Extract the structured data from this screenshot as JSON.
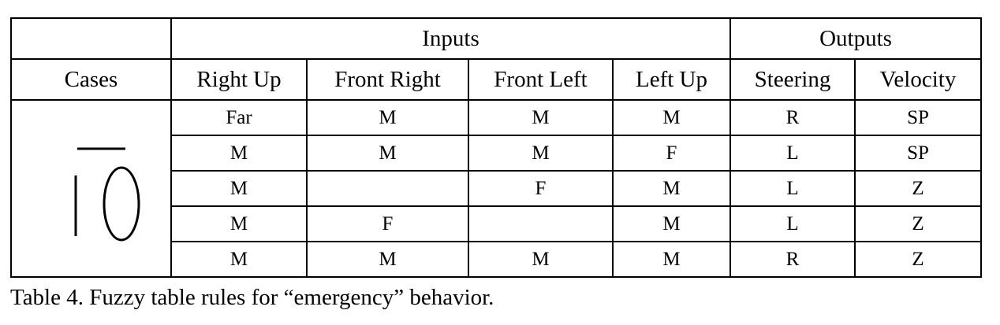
{
  "table": {
    "group_headers": {
      "inputs": "Inputs",
      "outputs": "Outputs"
    },
    "columns": {
      "cases": "Cases",
      "right_up": "Right Up",
      "front_right": "Front Right",
      "front_left": "Front Left",
      "left_up": "Left Up",
      "steering": "Steering",
      "velocity": "Velocity"
    },
    "case_icon": "robot-between-walls-icon",
    "rows": [
      {
        "right_up": "Far",
        "front_right": "M",
        "front_left": "M",
        "left_up": "M",
        "steering": "R",
        "velocity": "SP"
      },
      {
        "right_up": "M",
        "front_right": "M",
        "front_left": "M",
        "left_up": "F",
        "steering": "L",
        "velocity": "SP"
      },
      {
        "right_up": "M",
        "front_right": "",
        "front_left": "F",
        "left_up": "M",
        "steering": "L",
        "velocity": "Z"
      },
      {
        "right_up": "M",
        "front_right": "F",
        "front_left": "",
        "left_up": "M",
        "steering": "L",
        "velocity": "Z"
      },
      {
        "right_up": "M",
        "front_right": "M",
        "front_left": "M",
        "left_up": "M",
        "steering": "R",
        "velocity": "Z"
      }
    ]
  },
  "caption": "Table 4. Fuzzy table rules for “emergency” behavior."
}
